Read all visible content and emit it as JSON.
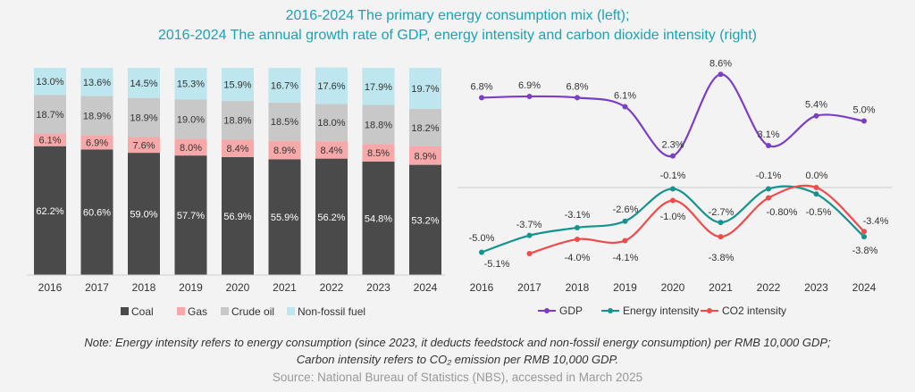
{
  "title_line1": "2016-2024 The primary energy consumption mix (left);",
  "title_line2": "2016-2024 The annual growth rate of GDP, energy intensity and carbon dioxide intensity (right)",
  "note_line1": "Note: Energy intensity refers to energy consumption (since 2023, it deducts feedstock and non-fossil energy consumption) per RMB 10,000 GDP;",
  "note_line2": "Carbon intensity refers to CO₂ emission per RMB 10,000 GDP.",
  "source": "Source: National Bureau of Statistics (NBS), accessed in March 2025",
  "colors": {
    "coal": "#4a4a4a",
    "gas": "#f7a8a8",
    "oil": "#c8c8c8",
    "nonfossil": "#bde6ee",
    "gdp": "#7b3fc4",
    "energy": "#17938f",
    "co2": "#ef4b4b"
  },
  "chart_data": [
    {
      "type": "bar",
      "stacked": true,
      "categories": [
        "2016",
        "2017",
        "2018",
        "2019",
        "2020",
        "2021",
        "2022",
        "2023",
        "2024"
      ],
      "ylim": [
        0,
        100
      ],
      "series": [
        {
          "name": "Coal",
          "key": "coal",
          "values": [
            62.2,
            60.6,
            59.0,
            57.7,
            56.9,
            55.9,
            56.2,
            54.8,
            53.2
          ],
          "labels": [
            "62.2%",
            "60.6%",
            "59.0%",
            "57.7%",
            "56.9%",
            "55.9%",
            "56.2%",
            "54.8%",
            "53.2%"
          ]
        },
        {
          "name": "Gas",
          "key": "gas",
          "values": [
            6.1,
            6.9,
            7.6,
            8.0,
            8.4,
            8.9,
            8.4,
            8.5,
            8.9
          ],
          "labels": [
            "6.1%",
            "6.9%",
            "7.6%",
            "8.0%",
            "8.4%",
            "8.9%",
            "8.4%",
            "8.5%",
            "8.9%"
          ]
        },
        {
          "name": "Crude oil",
          "key": "oil",
          "values": [
            18.7,
            18.9,
            18.9,
            19.0,
            18.8,
            18.5,
            18.0,
            18.8,
            18.2
          ],
          "labels": [
            "18.7%",
            "18.9%",
            "18.9%",
            "19.0%",
            "18.8%",
            "18.5%",
            "18.0%",
            "18.8%",
            "18.2%"
          ]
        },
        {
          "name": "Non-fossil fuel",
          "key": "nonfossil",
          "values": [
            13.0,
            13.6,
            14.5,
            15.3,
            15.9,
            16.7,
            17.6,
            17.9,
            19.7
          ],
          "labels": [
            "13.0%",
            "13.6%",
            "14.5%",
            "15.3%",
            "15.9%",
            "16.7%",
            "17.6%",
            "17.9%",
            "19.7%"
          ]
        }
      ],
      "legend_position": "bottom"
    },
    {
      "type": "line",
      "categories": [
        "2016",
        "2017",
        "2018",
        "2019",
        "2020",
        "2021",
        "2022",
        "2023",
        "2024"
      ],
      "series": [
        {
          "name": "GDP",
          "key": "gdp",
          "values": [
            6.8,
            6.9,
            6.8,
            6.1,
            2.3,
            8.6,
            3.1,
            5.4,
            5.0
          ],
          "labels": [
            "6.8%",
            "6.9%",
            "6.8%",
            "6.1%",
            "2.3%",
            "8.6%",
            "3.1%",
            "5.4%",
            "5.0%"
          ]
        },
        {
          "name": "Energy intensity",
          "key": "energy",
          "values": [
            -5.0,
            -3.7,
            -3.1,
            -2.6,
            -0.1,
            -2.7,
            -0.1,
            -0.5,
            -3.8
          ],
          "labels": [
            "-5.0%",
            "-3.7%",
            "-3.1%",
            "-2.6%",
            "-0.1%",
            "-2.7%",
            "-0.1%",
            "-0.5%",
            "-3.8%"
          ]
        },
        {
          "name": "CO2 intensity",
          "key": "co2",
          "values": [
            null,
            -5.1,
            -4.0,
            -4.1,
            -1.0,
            -3.8,
            -0.8,
            0.0,
            -3.4
          ],
          "labels": [
            null,
            "-5.1%",
            "-4.0%",
            "-4.1%",
            "-1.0%",
            "-3.8%",
            "-0.80%",
            "0.0%",
            "-3.4%"
          ]
        }
      ],
      "legend_position": "bottom"
    }
  ]
}
